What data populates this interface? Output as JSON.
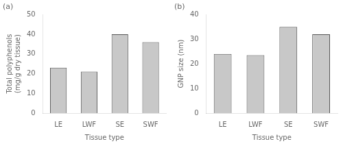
{
  "chart_data": [
    {
      "type": "bar",
      "title": "(a)",
      "categories": [
        "LE",
        "LWF",
        "SE",
        "SWF"
      ],
      "values": [
        23,
        21,
        40,
        36
      ],
      "color": "#c8c8c8",
      "xlabel": "Tissue type",
      "ylabel": "Total polyphenols\n(mg/g dry tissue)",
      "ylim": [
        0,
        50
      ],
      "yticks": [
        0,
        10,
        20,
        30,
        40,
        50
      ],
      "grid": false
    },
    {
      "type": "bar",
      "title": "(b)",
      "categories": [
        "LE",
        "LWF",
        "SE",
        "SWF"
      ],
      "values": [
        24,
        23.5,
        35,
        32
      ],
      "color": "#c8c8c8",
      "xlabel": "Tissue type",
      "ylabel": "GNP size (nm)",
      "ylim": [
        0,
        40
      ],
      "yticks": [
        0,
        10,
        20,
        30,
        40
      ],
      "grid": false
    }
  ]
}
